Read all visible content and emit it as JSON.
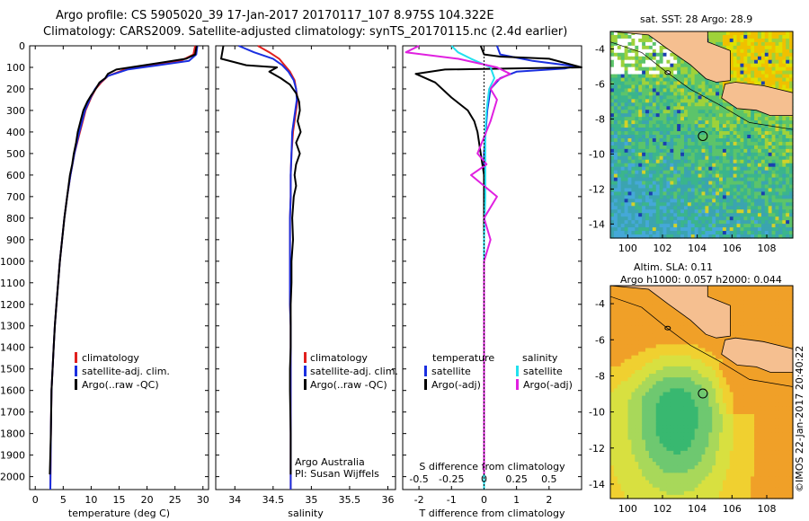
{
  "header": {
    "line1": "Argo profile: CS 5905020_39 17-Jan-2017 20170117_107 8.975S 104.322E",
    "line2": "Climatology: CARS2009. Satellite-adjusted climatology: synTS_20170115.nc (2.4d earlier)"
  },
  "colors": {
    "climatology": "#e0201e",
    "satellite": "#1a2fe0",
    "argo": "#000000",
    "sat_diff": "#22e0ee",
    "argo_diff": "#e020e0",
    "land": "#f5bf90"
  },
  "depth_axis": {
    "ticks": [
      "0",
      "100",
      "200",
      "300",
      "400",
      "500",
      "600",
      "700",
      "800",
      "900",
      "1000",
      "1100",
      "1200",
      "1300",
      "1400",
      "1500",
      "1600",
      "1700",
      "1800",
      "1900",
      "2000"
    ]
  },
  "labels": {
    "legend_climatology": "climatology",
    "legend_satellite": "satellite-adj. clim.",
    "legend_argo": "Argo(..raw -QC)",
    "diff_temperature": "temperature",
    "diff_salinity": "salinity",
    "diff_satellite": "satellite",
    "diff_argo": "Argo(-adj)",
    "credit1": "Argo Australia",
    "credit2": "PI: Susan Wijffels",
    "sst_title": "sat. SST: 28 Argo: 28.9",
    "sla_title1": "Altim. SLA: 0.11",
    "sla_title2": "Argo h1000: 0.057 h2000: 0.044",
    "stamp": "©IMOS 22-Jan-2017 20:40:22"
  },
  "chart_data": [
    {
      "type": "line",
      "xlabel": "temperature (deg C)",
      "ylabel": "",
      "xlim": [
        -1,
        31
      ],
      "ylim": [
        2060,
        0
      ],
      "xticks": [
        "0",
        "5",
        "10",
        "15",
        "20",
        "25",
        "30"
      ],
      "series": [
        {
          "name": "climatology",
          "x": [
            28.6,
            28.3,
            26,
            21,
            16,
            13,
            11.8,
            10.8,
            10,
            9,
            8.4,
            7.8,
            7,
            6.3,
            5.7,
            5.2,
            4.8,
            4.4,
            4.1,
            3.8,
            3.5,
            3.3,
            3.1,
            2.9,
            2.8,
            2.7
          ],
          "y": [
            0,
            40,
            70,
            90,
            110,
            140,
            170,
            200,
            240,
            300,
            360,
            420,
            500,
            600,
            700,
            800,
            900,
            1000,
            1100,
            1200,
            1300,
            1400,
            1500,
            1600,
            1800,
            2060
          ]
        },
        {
          "name": "satellite-adj. clim.",
          "x": [
            29,
            28.8,
            27.5,
            22,
            16.5,
            13,
            11.6,
            10.7,
            9.9,
            8.9,
            8.3,
            7.7,
            7,
            6.3,
            5.7,
            5.2,
            4.8,
            4.4,
            4.1,
            3.8,
            3.5,
            3.3,
            3.1,
            2.9,
            2.8,
            2.7
          ],
          "y": [
            0,
            40,
            70,
            90,
            110,
            140,
            170,
            200,
            240,
            300,
            360,
            420,
            500,
            600,
            700,
            800,
            900,
            1000,
            1100,
            1200,
            1300,
            1400,
            1500,
            1600,
            1800,
            2060
          ]
        },
        {
          "name": "Argo(..raw -QC)",
          "x": [
            28.9,
            28.8,
            28.6,
            27,
            22,
            17,
            14.5,
            13,
            12.5,
            11.5,
            10.8,
            10,
            9.3,
            8.6,
            8.1,
            7.6,
            7.3,
            6.9,
            6.6,
            6.2,
            5.7,
            5.2,
            4.8,
            4.4,
            4.1,
            3.8,
            3.5,
            3.3,
            3.1,
            2.9,
            2.8,
            2.6
          ],
          "y": [
            0,
            10,
            40,
            60,
            80,
            100,
            110,
            130,
            150,
            170,
            200,
            230,
            260,
            300,
            350,
            400,
            450,
            500,
            550,
            600,
            700,
            800,
            900,
            1000,
            1100,
            1200,
            1300,
            1400,
            1500,
            1600,
            1800,
            1990
          ]
        }
      ]
    },
    {
      "type": "line",
      "xlabel": "salinity",
      "ylabel": "",
      "xlim": [
        33.75,
        36.1
      ],
      "ylim": [
        2060,
        0
      ],
      "xticks": [
        "34",
        "34.5",
        "35",
        "35.5",
        "36"
      ],
      "series": [
        {
          "name": "climatology",
          "x": [
            34.3,
            34.45,
            34.58,
            34.65,
            34.72,
            34.78,
            34.8,
            34.82,
            34.8,
            34.78,
            34.76,
            34.74,
            34.73,
            34.73,
            34.72,
            34.72,
            34.72,
            34.72,
            34.72,
            34.73,
            34.73,
            34.73,
            34.73,
            34.73,
            34.73
          ],
          "y": [
            0,
            30,
            60,
            90,
            120,
            160,
            200,
            250,
            300,
            350,
            400,
            500,
            600,
            700,
            800,
            900,
            1000,
            1100,
            1200,
            1300,
            1400,
            1500,
            1600,
            1800,
            2060
          ]
        },
        {
          "name": "satellite-adj. clim.",
          "x": [
            34.05,
            34.25,
            34.5,
            34.62,
            34.7,
            34.77,
            34.8,
            34.81,
            34.79,
            34.77,
            34.75,
            34.74,
            34.73,
            34.73,
            34.72,
            34.72,
            34.72,
            34.72,
            34.72,
            34.73,
            34.73,
            34.73,
            34.73,
            34.73,
            34.73
          ],
          "y": [
            0,
            30,
            60,
            90,
            120,
            160,
            200,
            250,
            300,
            350,
            400,
            500,
            600,
            700,
            800,
            900,
            1000,
            1100,
            1200,
            1300,
            1400,
            1500,
            1600,
            1800,
            2060
          ]
        },
        {
          "name": "Argo(..raw -QC)",
          "x": [
            33.85,
            33.82,
            34.15,
            34.55,
            34.45,
            34.6,
            34.72,
            34.8,
            34.84,
            34.85,
            34.82,
            34.86,
            34.8,
            34.85,
            34.8,
            34.78,
            34.8,
            34.77,
            34.75,
            34.76,
            34.74,
            34.74,
            34.73,
            34.73,
            34.73,
            34.72,
            34.72,
            34.73,
            34.73
          ],
          "y": [
            0,
            60,
            90,
            100,
            120,
            150,
            180,
            220,
            260,
            300,
            350,
            400,
            450,
            500,
            550,
            600,
            650,
            700,
            800,
            900,
            1000,
            1100,
            1200,
            1300,
            1400,
            1500,
            1600,
            1800,
            1990
          ]
        }
      ]
    },
    {
      "type": "line",
      "xlabel": "T difference from climatology",
      "x2label": "S difference from climatology",
      "ylabel": "",
      "xlim": [
        -2.5,
        3
      ],
      "ylim": [
        2060,
        0
      ],
      "xticks": [
        "-2",
        "-1",
        "0",
        "1",
        "2"
      ],
      "x2ticks": [
        "-0.5",
        "-0.25",
        "0",
        "0.25",
        "0.5"
      ],
      "series": [
        {
          "name": "temperature satellite",
          "x": [
            0.4,
            0.5,
            1.5,
            2.8,
            2.5,
            1.0,
            0.5,
            0.2,
            0.1,
            0.05,
            0,
            0,
            0,
            0,
            0,
            0,
            0,
            0
          ],
          "y": [
            0,
            40,
            70,
            95,
            105,
            120,
            150,
            200,
            300,
            400,
            500,
            700,
            900,
            1100,
            1300,
            1500,
            1800,
            2060
          ]
        },
        {
          "name": "temperature Argo(-adj)",
          "x": [
            -0.1,
            0,
            0.5,
            2.0,
            3.0,
            -1.2,
            -2.1,
            -1.5,
            -1.0,
            -0.5,
            -0.3,
            -0.2,
            -0.1,
            0,
            0,
            0,
            0,
            0,
            0
          ],
          "y": [
            0,
            40,
            50,
            60,
            100,
            110,
            130,
            170,
            240,
            300,
            350,
            400,
            500,
            600,
            800,
            1000,
            1300,
            1600,
            1990
          ]
        },
        {
          "name": "salinity satellite",
          "x": [
            -0.25,
            -0.2,
            -0.1,
            0.05,
            0.08,
            0.04,
            0.02,
            0.01,
            0.01,
            0.01,
            0,
            0,
            0,
            0,
            0
          ],
          "y": [
            0,
            30,
            60,
            100,
            150,
            200,
            300,
            400,
            500,
            700,
            900,
            1100,
            1300,
            1600,
            2060
          ]
        },
        {
          "name": "salinity Argo(-adj)",
          "x": [
            -0.5,
            -0.6,
            -0.2,
            0.1,
            0.2,
            0.1,
            0.05,
            0.1,
            0.05,
            -0.05,
            0.02,
            -0.1,
            0.1,
            0,
            0.05,
            0,
            0,
            0
          ],
          "y": [
            0,
            30,
            60,
            100,
            130,
            160,
            200,
            250,
            350,
            500,
            550,
            600,
            700,
            800,
            900,
            1000,
            1300,
            1990
          ]
        }
      ]
    }
  ],
  "maps": [
    {
      "name": "sst",
      "lon_ticks": [
        "100",
        "102",
        "104",
        "106",
        "108"
      ],
      "lat_ticks": [
        "-4",
        "-6",
        "-8",
        "-10",
        "-12",
        "-14"
      ],
      "lonlim": [
        99,
        109.5
      ],
      "latlim": [
        -14.8,
        -3
      ],
      "marker": {
        "lon": 104.322,
        "lat": -8.975
      }
    },
    {
      "name": "sla",
      "lon_ticks": [
        "100",
        "102",
        "104",
        "106",
        "108"
      ],
      "lat_ticks": [
        "-4",
        "-6",
        "-8",
        "-10",
        "-12",
        "-14"
      ],
      "lonlim": [
        99,
        109.5
      ],
      "latlim": [
        -14.8,
        -3
      ],
      "marker": {
        "lon": 104.322,
        "lat": -8.975
      }
    }
  ]
}
